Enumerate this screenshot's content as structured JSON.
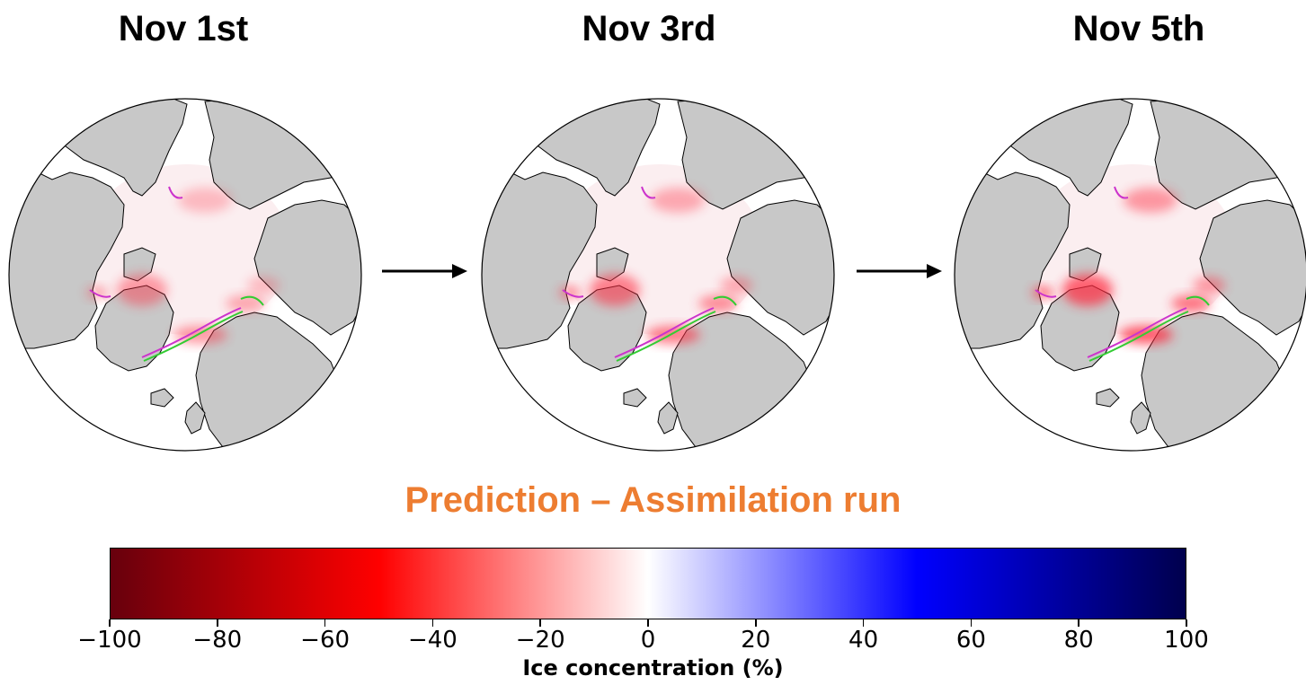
{
  "panels": [
    {
      "title": "Nov 1st",
      "intensity": 0.6
    },
    {
      "title": "Nov 3rd",
      "intensity": 0.8
    },
    {
      "title": "Nov 5th",
      "intensity": 1.0
    }
  ],
  "subtitle": "Prediction –  Assimilation run",
  "colorbar": {
    "label": "Ice concentration (%)",
    "min": -100,
    "max": 100,
    "ticks": [
      "−100",
      "−80",
      "−60",
      "−40",
      "−20",
      "0",
      "20",
      "40",
      "60",
      "80",
      "100"
    ],
    "colors": [
      "#67000d",
      "#ff0000",
      "#ffffff",
      "#0000ff",
      "#00004d"
    ]
  },
  "map_colors": {
    "land": "#c8c8c8",
    "ocean": "#ffffff",
    "ice_edge_prediction": "#cc33cc",
    "ice_edge_assimilation": "#33cc33"
  }
}
